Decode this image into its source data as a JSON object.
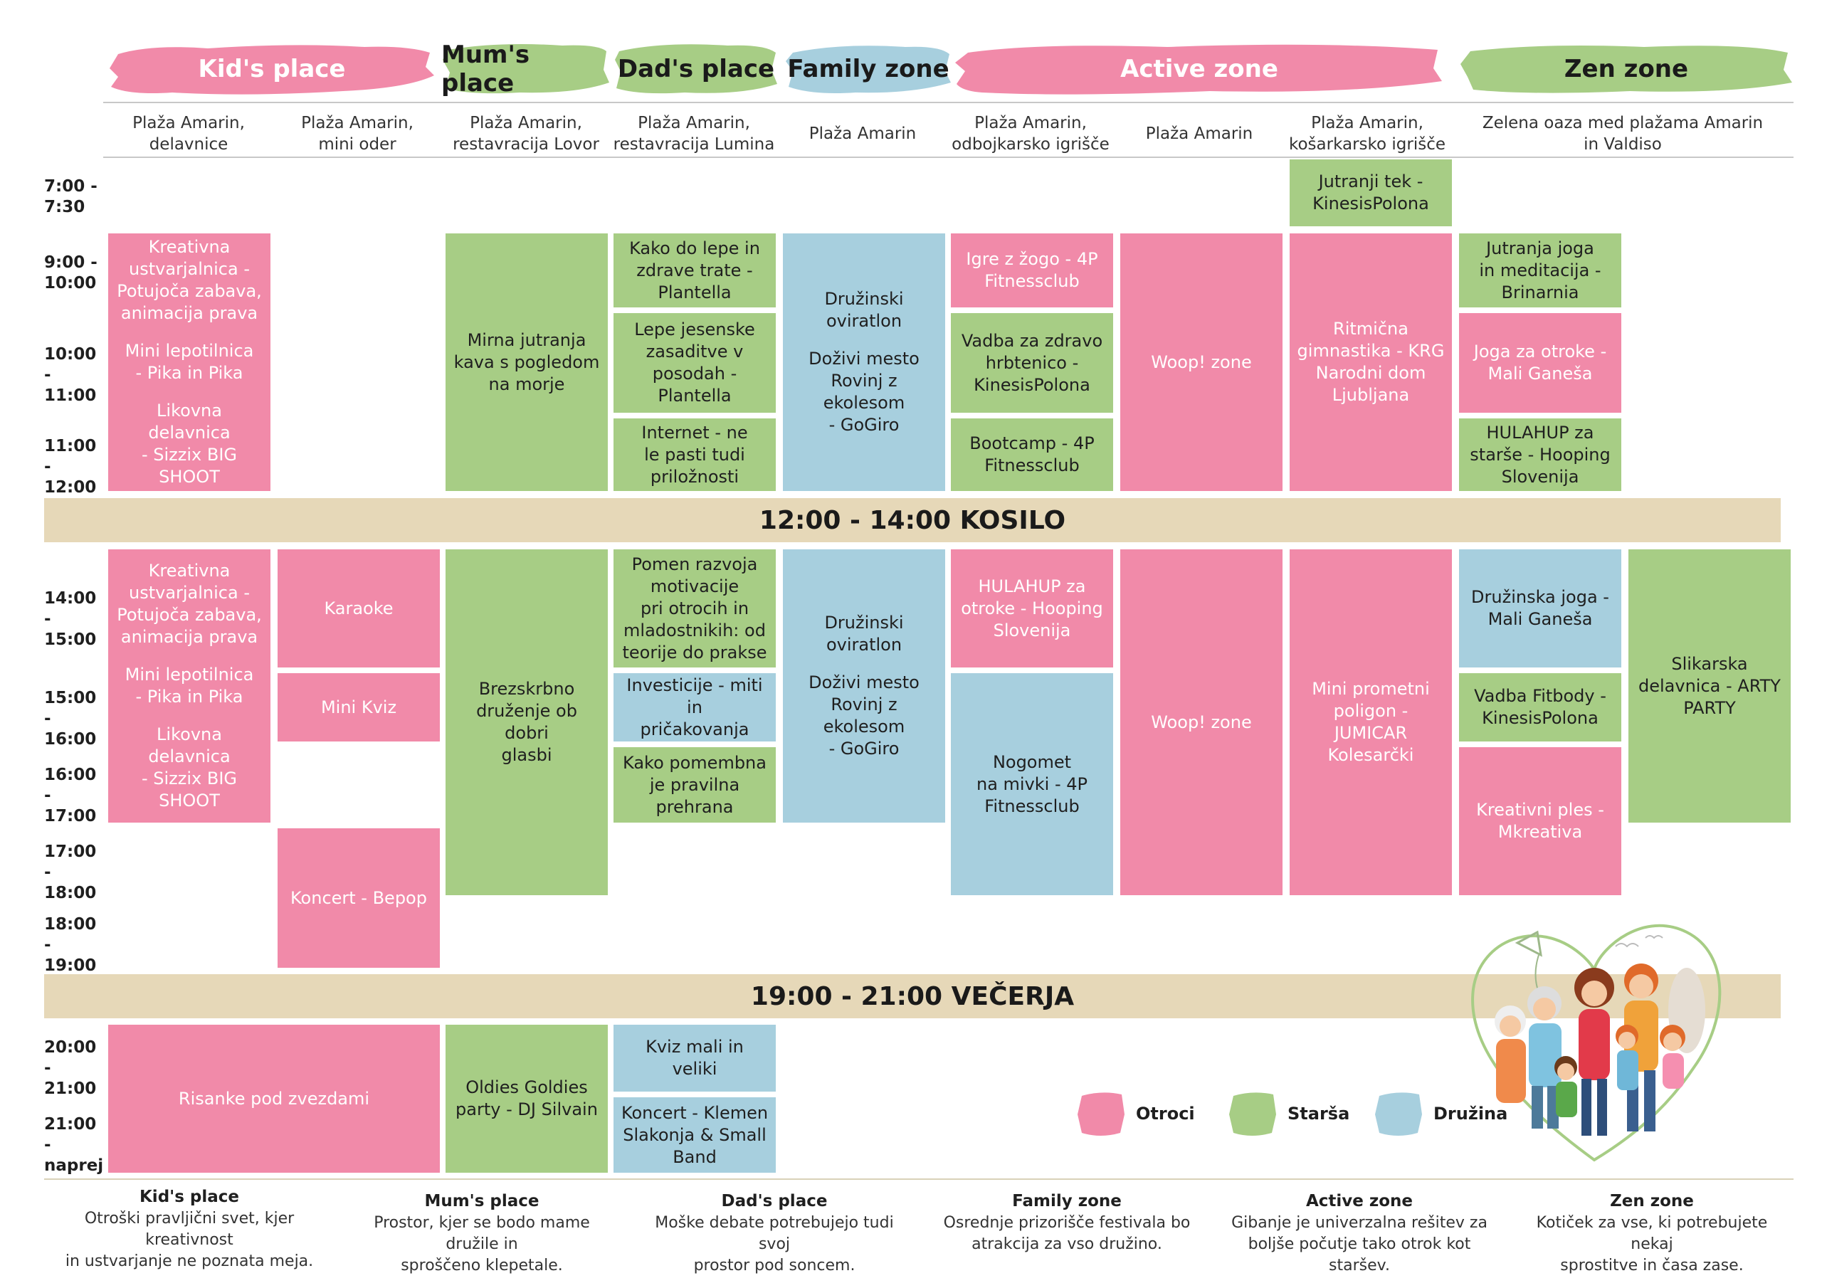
{
  "zones": [
    {
      "name": "Kid's place",
      "color": "#f18aa9"
    },
    {
      "name": "Mum's place",
      "color": "#a7cd85"
    },
    {
      "name": "Dad's place",
      "color": "#a7cd85"
    },
    {
      "name": "Family zone",
      "color": "#a7cfde"
    },
    {
      "name": "Active zone",
      "color": "#f18aa9"
    },
    {
      "name": "Zen zone",
      "color": "#a7cd85"
    }
  ],
  "locations": [
    "Plaža Amarin,\ndelavnice",
    "Plaža Amarin,\nmini oder",
    "Plaža Amarin,\nrestavracija Lovor",
    "Plaža Amarin,\nrestavracija Lumina",
    "Plaža Amarin",
    "Plaža Amarin,\nodbojkarsko igrišče",
    "Plaža Amarin",
    "Plaža Amarin,\nkošarkarsko igrišče",
    "Zelena oaza med plažama Amarin\nin Valdiso"
  ],
  "times": [
    "7:00 -\n7:30",
    "9:00 -\n10:00",
    "10:00 -\n11:00",
    "11:00 -\n12:00",
    "14:00 -\n15:00",
    "15:00 -\n16:00",
    "16:00 -\n17:00",
    "17:00 -\n18:00",
    "18:00 -\n19:00",
    "20:00 -\n21:00",
    "21:00 -\nnaprej"
  ],
  "breaks": {
    "lunch": "12:00 - 14:00 KOSILO",
    "dinner": "19:00 - 21:00 VEČERJA"
  },
  "events": {
    "e1": [
      "Kreativna\nustvarjalnica -\nPotujoča zabava,\nanimacija prava",
      "Mini lepotilnica\n- Pika in Pika",
      "Likovna delavnica\n- Sizzix BIG\nSHOOT"
    ],
    "e2": "Mirna jutranja\nkava s pogledom\nna morje",
    "e3": "Kako do lepe in\nzdrave trate -\nPlantella",
    "e4": "Lepe jesenske\nzasaditve v\nposodah -\nPlantella",
    "e5": "Internet - ne\nle pasti tudi\npriložnosti",
    "e6": [
      "Družinski\noviratlon",
      "Doživi mesto\nRovinj z ekolesom\n- GoGiro"
    ],
    "e7": "Igre z žogo - 4P\nFitnessclub",
    "e8": "Vadba za zdravo\nhrbtenico -\nKinesisPolona",
    "e9": "Bootcamp - 4P\nFitnessclub",
    "e10": "Woop! zone",
    "e11": "Jutranji tek -\nKinesisPolona",
    "e12": "Ritmična\ngimnastika - KRG\nNarodni dom\nLjubljana",
    "e13": "Jutranja joga\nin meditacija -\nBrinarnia",
    "e14": "Joga za otroke -\nMali Ganeša",
    "e15": "HULAHUP za\nstarše - Hooping\nSlovenija",
    "e16": [
      "Kreativna\nustvarjalnica -\nPotujoča zabava,\nanimacija prava",
      "Mini lepotilnica\n- Pika in Pika",
      "Likovna delavnica\n- Sizzix BIG\nSHOOT"
    ],
    "e17": "Karaoke",
    "e18": "Mini Kviz",
    "e19": "Koncert - Bepop",
    "e20": "Brezskrbno\ndruženje ob dobri\nglasbi",
    "e21": "Pomen razvoja\nmotivacije\npri otrocih in\nmladostnikih: od\nteorije do prakse",
    "e22": "Investicije - miti in\npričakovanja",
    "e23": "Kako pomembna\nje pravilna\nprehrana",
    "e24": [
      "Družinski\noviratlon",
      "Doživi mesto\nRovinj z ekolesom\n- GoGiro"
    ],
    "e25": "HULAHUP za\notroke - Hooping\nSlovenija",
    "e26": "Nogomet\nna mivki - 4P\nFitnessclub",
    "e27": "Woop! zone",
    "e28": "Mini prometni\npoligon -\nJUMICAR\nKolesarčki",
    "e29": "Družinska joga -\nMali Ganeša",
    "e30": "Vadba Fitbody -\nKinesisPolona",
    "e31": "Kreativni ples -\nMkreativa",
    "e32": "Slikarska\ndelavnica - ARTY\nPARTY",
    "e33": "Risanke pod zvezdami",
    "e34": "Oldies Goldies\nparty - DJ Silvain",
    "e35": "Kviz mali in veliki",
    "e36": "Koncert - Klemen\nSlakonja & Small\nBand"
  },
  "legend": [
    {
      "label": "Otroci",
      "color": "#f18aa9"
    },
    {
      "label": "Starša",
      "color": "#a7cd85"
    },
    {
      "label": "Družina",
      "color": "#a7cfde"
    }
  ],
  "footer": [
    {
      "title": "Kid's place",
      "desc": "Otroški pravljični svet, kjer kreativnost\nin ustvarjanje ne poznata meja."
    },
    {
      "title": "Mum's place",
      "desc": "Prostor, kjer se bodo mame družile in\nsproščeno klepetale."
    },
    {
      "title": "Dad's place",
      "desc": "Moške debate potrebujejo tudi svoj\nprostor pod soncem."
    },
    {
      "title": "Family zone",
      "desc": "Osrednje prizorišče festivala bo\natrakcija za vso družino."
    },
    {
      "title": "Active zone",
      "desc": "Gibanje je univerzalna rešitev za\nboljše počutje tako otrok kot staršev."
    },
    {
      "title": "Zen zone",
      "desc": "Kotiček za vse, ki potrebujete nekaj\nsprostitve in časa zase."
    }
  ]
}
